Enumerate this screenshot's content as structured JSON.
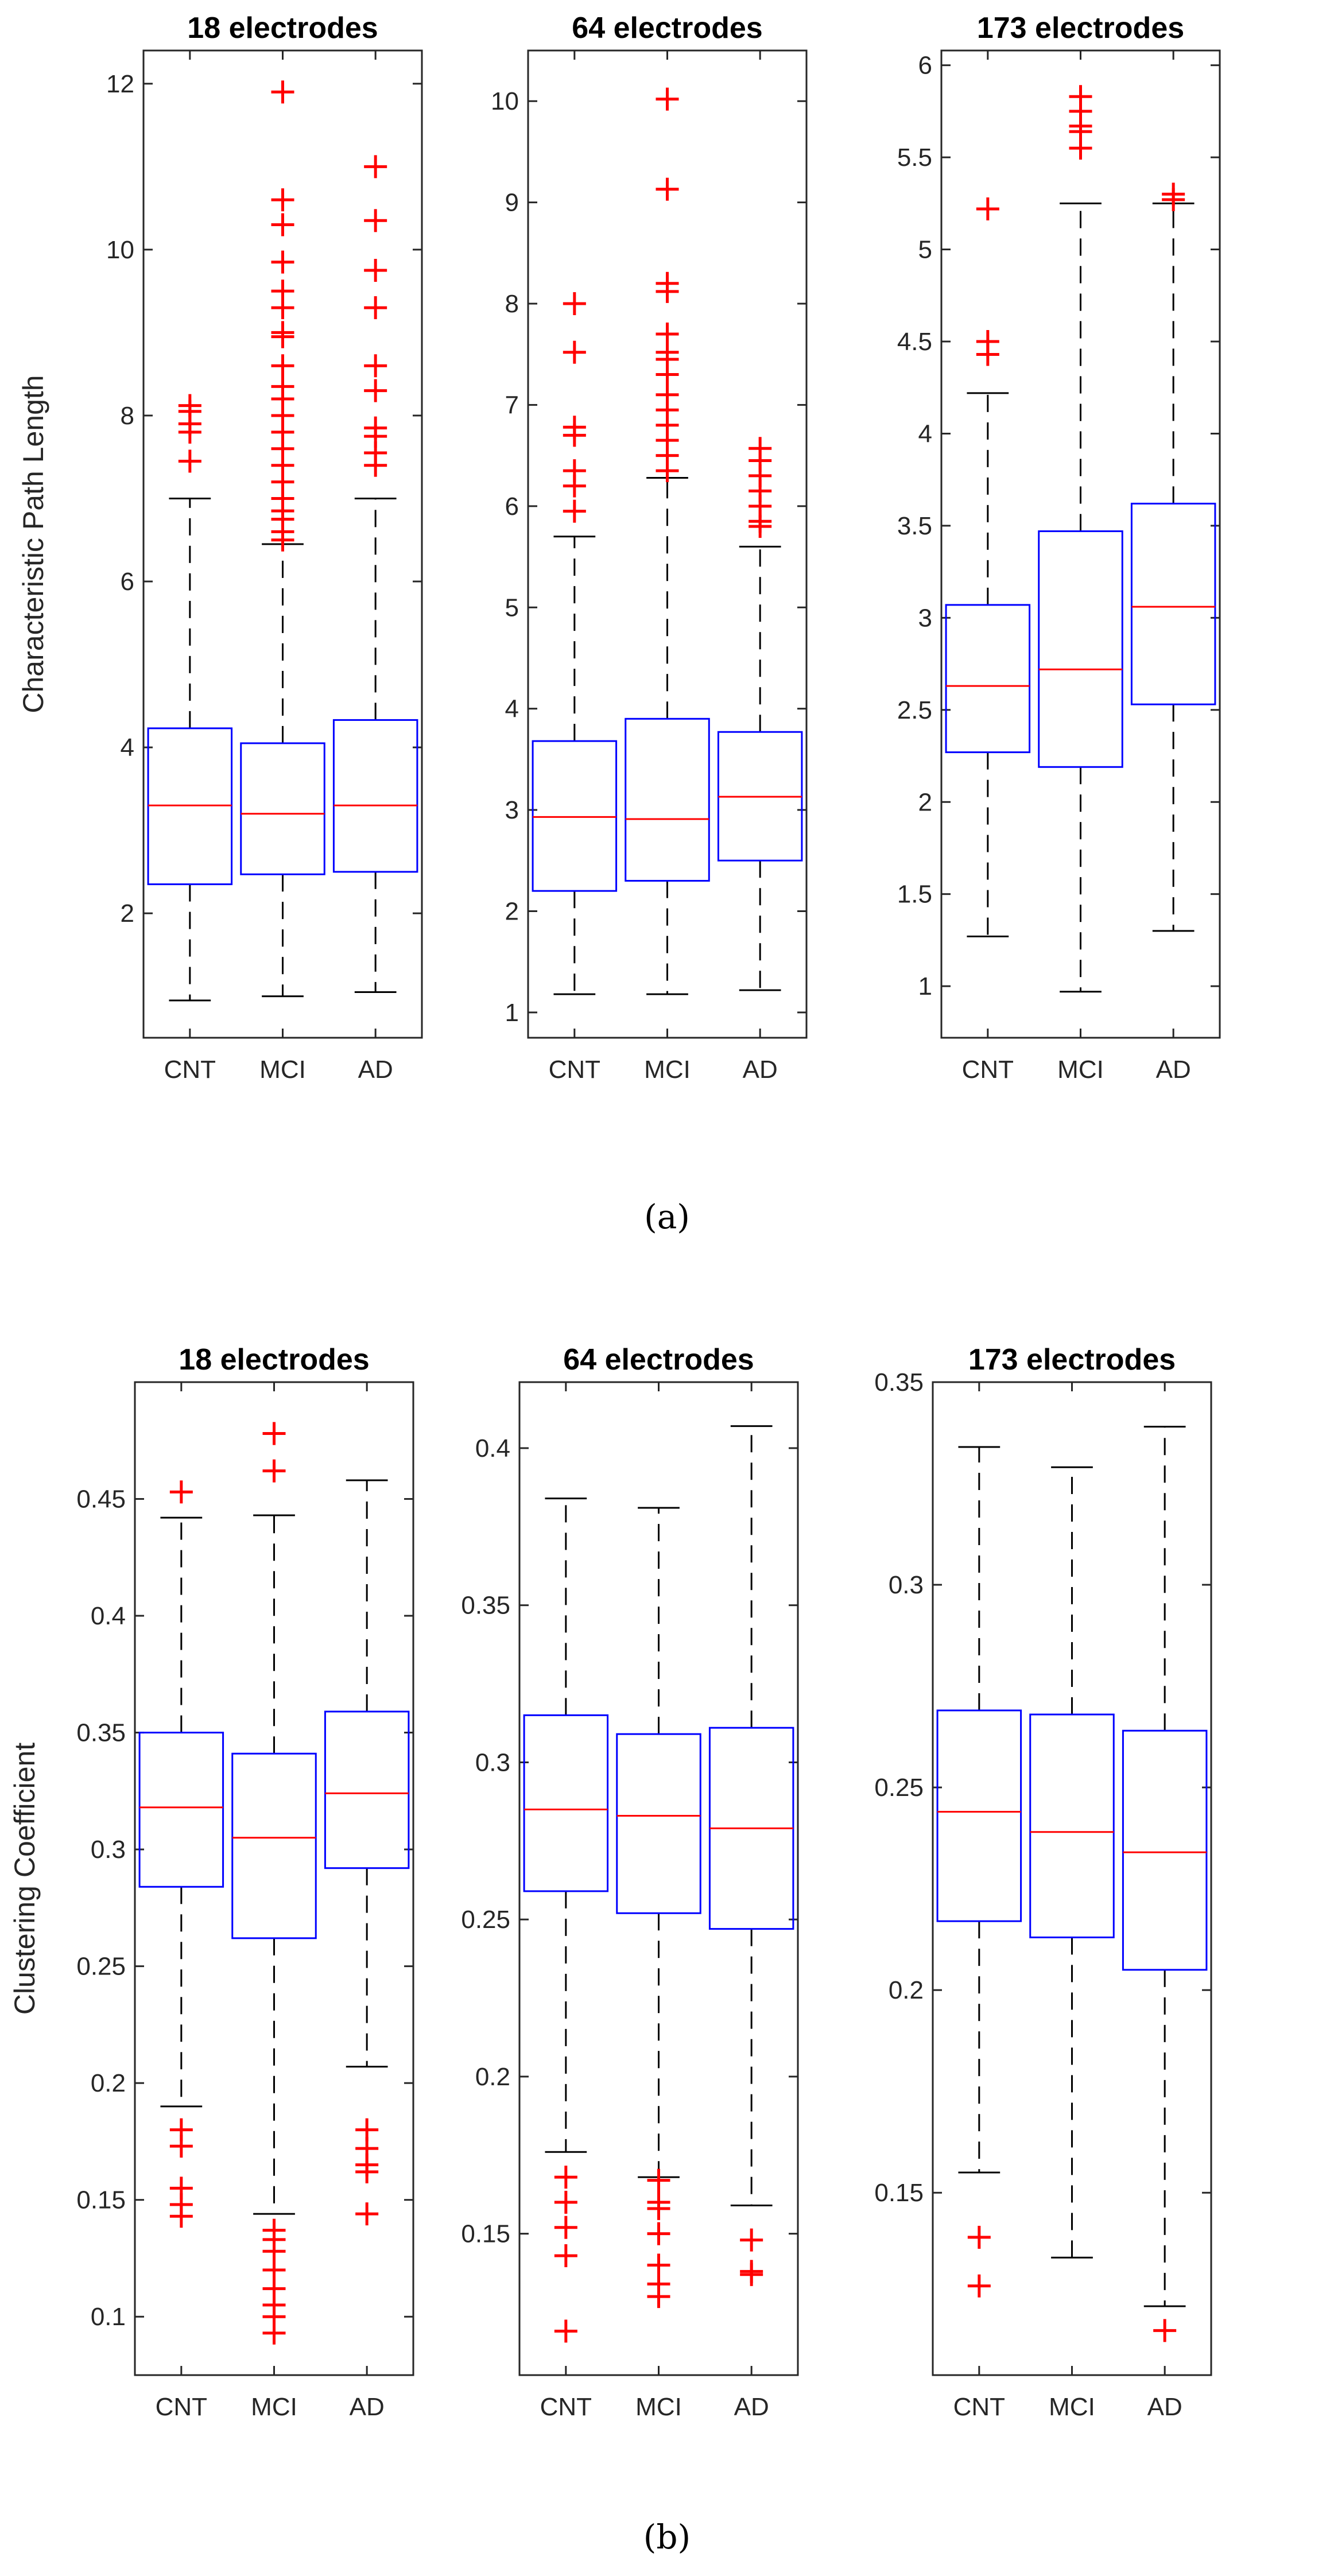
{
  "figure": {
    "caption_a": "(a)",
    "caption_b": "(b)",
    "colors": {
      "box": "#0000ff",
      "median": "#ff0000",
      "whisker": "#000000",
      "outlier": "#ff0000"
    }
  },
  "chart_data": [
    {
      "type": "box",
      "title": "18 electrodes",
      "ylabel": "Characteristic Path Length",
      "categories": [
        "CNT",
        "MCI",
        "AD"
      ],
      "ylim": [
        0.5,
        12.4
      ],
      "yticks": [
        2,
        4,
        6,
        8,
        10,
        12
      ],
      "boxes": [
        {
          "min": 0.95,
          "q1": 2.35,
          "median": 3.3,
          "q3": 4.23,
          "max": 7.0,
          "outliers": [
            7.45,
            7.8,
            7.9,
            8.05,
            8.12
          ]
        },
        {
          "min": 1.0,
          "q1": 2.47,
          "median": 3.2,
          "q3": 4.05,
          "max": 6.45,
          "outliers": [
            6.5,
            6.6,
            6.75,
            6.85,
            7.0,
            7.2,
            7.4,
            7.6,
            7.8,
            8.0,
            8.2,
            8.35,
            8.6,
            8.95,
            9.0,
            9.3,
            9.5,
            9.85,
            10.3,
            10.6,
            11.9
          ]
        },
        {
          "min": 1.05,
          "q1": 2.5,
          "median": 3.3,
          "q3": 4.33,
          "max": 7.0,
          "outliers": [
            7.4,
            7.55,
            7.75,
            7.85,
            8.3,
            8.6,
            9.3,
            9.75,
            10.35,
            11.0
          ]
        }
      ]
    },
    {
      "type": "box",
      "title": "64 electrodes",
      "ylabel": "",
      "categories": [
        "CNT",
        "MCI",
        "AD"
      ],
      "ylim": [
        0.75,
        10.5
      ],
      "yticks": [
        1,
        2,
        3,
        4,
        5,
        6,
        7,
        8,
        9,
        10
      ],
      "boxes": [
        {
          "min": 1.18,
          "q1": 2.2,
          "median": 2.93,
          "q3": 3.68,
          "max": 5.7,
          "outliers": [
            5.95,
            6.2,
            6.35,
            6.7,
            6.78,
            7.52,
            8.0
          ]
        },
        {
          "min": 1.18,
          "q1": 2.3,
          "median": 2.91,
          "q3": 3.9,
          "max": 6.28,
          "outliers": [
            6.35,
            6.5,
            6.65,
            6.8,
            6.95,
            7.1,
            7.3,
            7.45,
            7.52,
            7.7,
            8.12,
            8.2,
            9.13,
            10.02
          ]
        },
        {
          "min": 1.22,
          "q1": 2.5,
          "median": 3.13,
          "q3": 3.77,
          "max": 5.6,
          "outliers": [
            5.8,
            5.85,
            6.0,
            6.15,
            6.3,
            6.45,
            6.57
          ]
        }
      ]
    },
    {
      "type": "box",
      "title": "173 electrodes",
      "ylabel": "",
      "categories": [
        "CNT",
        "MCI",
        "AD"
      ],
      "ylim": [
        0.72,
        6.08
      ],
      "yticks": [
        1,
        1.5,
        2,
        2.5,
        3,
        3.5,
        4,
        4.5,
        5,
        5.5,
        6
      ],
      "boxes": [
        {
          "min": 1.27,
          "q1": 2.27,
          "median": 2.63,
          "q3": 3.07,
          "max": 4.22,
          "outliers": [
            4.43,
            4.5,
            5.22
          ]
        },
        {
          "min": 0.97,
          "q1": 2.19,
          "median": 2.72,
          "q3": 3.47,
          "max": 5.25,
          "outliers": [
            5.55,
            5.64,
            5.67,
            5.75,
            5.83
          ]
        },
        {
          "min": 1.3,
          "q1": 2.53,
          "median": 3.06,
          "q3": 3.62,
          "max": 5.25,
          "outliers": [
            5.27,
            5.3
          ]
        }
      ]
    },
    {
      "type": "box",
      "title": "18 electrodes",
      "ylabel": "Clustering Coefficient",
      "categories": [
        "CNT",
        "MCI",
        "AD"
      ],
      "ylim": [
        0.075,
        0.5
      ],
      "yticks": [
        0.1,
        0.15,
        0.2,
        0.25,
        0.3,
        0.35,
        0.4,
        0.45
      ],
      "boxes": [
        {
          "min": 0.19,
          "q1": 0.284,
          "median": 0.318,
          "q3": 0.35,
          "max": 0.442,
          "outliers": [
            0.143,
            0.148,
            0.155,
            0.173,
            0.18,
            0.453
          ]
        },
        {
          "min": 0.144,
          "q1": 0.262,
          "median": 0.305,
          "q3": 0.341,
          "max": 0.443,
          "outliers": [
            0.093,
            0.1,
            0.105,
            0.112,
            0.12,
            0.128,
            0.133,
            0.137,
            0.462,
            0.478
          ]
        },
        {
          "min": 0.207,
          "q1": 0.292,
          "median": 0.324,
          "q3": 0.359,
          "max": 0.458,
          "outliers": [
            0.144,
            0.162,
            0.165,
            0.172,
            0.18
          ]
        }
      ]
    },
    {
      "type": "box",
      "title": "64 electrodes",
      "ylabel": "",
      "categories": [
        "CNT",
        "MCI",
        "AD"
      ],
      "ylim": [
        0.105,
        0.421
      ],
      "yticks": [
        0.15,
        0.2,
        0.25,
        0.3,
        0.35,
        0.4
      ],
      "boxes": [
        {
          "min": 0.176,
          "q1": 0.259,
          "median": 0.285,
          "q3": 0.315,
          "max": 0.384,
          "outliers": [
            0.119,
            0.143,
            0.152,
            0.16,
            0.168
          ]
        },
        {
          "min": 0.168,
          "q1": 0.252,
          "median": 0.283,
          "q3": 0.309,
          "max": 0.381,
          "outliers": [
            0.13,
            0.134,
            0.14,
            0.15,
            0.158,
            0.16,
            0.167
          ]
        },
        {
          "min": 0.159,
          "q1": 0.247,
          "median": 0.279,
          "q3": 0.311,
          "max": 0.407,
          "outliers": [
            0.137,
            0.138,
            0.148
          ]
        }
      ]
    },
    {
      "type": "box",
      "title": "173 electrodes",
      "ylabel": "",
      "categories": [
        "CNT",
        "MCI",
        "AD"
      ],
      "ylim": [
        0.105,
        0.35
      ],
      "yticks": [
        0.15,
        0.2,
        0.25,
        0.3,
        0.35
      ],
      "boxes": [
        {
          "min": 0.155,
          "q1": 0.217,
          "median": 0.244,
          "q3": 0.269,
          "max": 0.334,
          "outliers": [
            0.127,
            0.139
          ]
        },
        {
          "min": 0.134,
          "q1": 0.213,
          "median": 0.239,
          "q3": 0.268,
          "max": 0.329,
          "outliers": []
        },
        {
          "min": 0.122,
          "q1": 0.205,
          "median": 0.234,
          "q3": 0.264,
          "max": 0.339,
          "outliers": [
            0.116
          ]
        }
      ]
    }
  ]
}
